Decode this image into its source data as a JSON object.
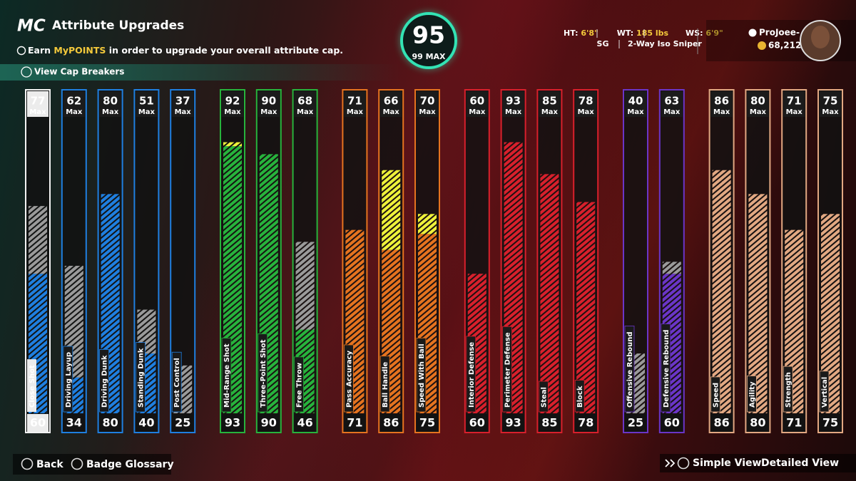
{
  "header": {
    "logo": "MC",
    "title": "Attribute Upgrades",
    "info_prefix": "Earn",
    "info_highlight": "MyPOINTS",
    "info_suffix": "in order to upgrade your overall attribute cap.",
    "cap_breakers": "View Cap Breakers"
  },
  "overall": {
    "value": 95,
    "cap_value": 99,
    "cap_label": "MAX"
  },
  "player": {
    "ht_label": "HT:",
    "ht": "6'8\"",
    "wt_label": "WT:",
    "wt": "185 lbs",
    "ws_label": "WS:",
    "ws": "6'9\"",
    "position": "SG",
    "archetype": "2-Way Iso Sniper",
    "name": "ProJoee-",
    "vc": "68,212"
  },
  "max_label": "Max",
  "groups": [
    {
      "color": "#1f7fe0",
      "attributes": [
        {
          "name": "Close Shot",
          "max": 77,
          "current": 60,
          "selected": true
        },
        {
          "name": "Driving Layup",
          "max": 62,
          "current": 34
        },
        {
          "name": "Driving Dunk",
          "max": 80,
          "current": 80
        },
        {
          "name": "Standing Dunk",
          "max": 51,
          "current": 40
        },
        {
          "name": "Post Control",
          "max": 37,
          "current": 25
        }
      ]
    },
    {
      "color": "#27b33c",
      "attributes": [
        {
          "name": "Mid-Range Shot",
          "max": 92,
          "current": 93
        },
        {
          "name": "Three-Point Shot",
          "max": 90,
          "current": 90
        },
        {
          "name": "Free Throw",
          "max": 68,
          "current": 46
        }
      ]
    },
    {
      "color": "#e5731f",
      "attributes": [
        {
          "name": "Pass Accuracy",
          "max": 71,
          "current": 71
        },
        {
          "name": "Ball Handle",
          "max": 66,
          "current": 86
        },
        {
          "name": "Speed With Ball",
          "max": 70,
          "current": 75
        }
      ]
    },
    {
      "color": "#d8202c",
      "attributes": [
        {
          "name": "Interior Defense",
          "max": 60,
          "current": 60
        },
        {
          "name": "Perimeter Defense",
          "max": 93,
          "current": 93
        },
        {
          "name": "Steal",
          "max": 85,
          "current": 85
        },
        {
          "name": "Block",
          "max": 78,
          "current": 78
        }
      ]
    },
    {
      "color": "#6a35c8",
      "attributes": [
        {
          "name": "Offensive Rebound",
          "max": 40,
          "current": 25
        },
        {
          "name": "Defensive Rebound",
          "max": 63,
          "current": 60
        }
      ]
    },
    {
      "color": "#e2a882",
      "attributes": [
        {
          "name": "Speed",
          "max": 86,
          "current": 86
        },
        {
          "name": "Agility",
          "max": 80,
          "current": 80
        },
        {
          "name": "Strength",
          "max": 71,
          "current": 71
        },
        {
          "name": "Vertical",
          "max": 75,
          "current": 75
        }
      ]
    }
  ],
  "footer": {
    "back": "Back",
    "badge_glossary": "Badge Glossary",
    "simple_view": "Simple View",
    "detailed_view": "Detailed View"
  }
}
